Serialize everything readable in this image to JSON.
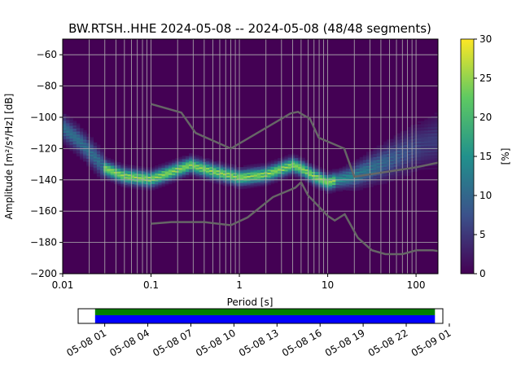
{
  "chart_data": {
    "type": "heatmap",
    "title": "BW.RTSH..HHE   2024-05-08 -- 2024-05-08  (48/48 segments)",
    "xlabel": "Period [s]",
    "ylabel": "Amplitude [m²/s⁴/Hz] [dB]",
    "xscale": "log",
    "xlim": [
      0.01,
      177
    ],
    "ylim": [
      -200,
      -50
    ],
    "xticks": [
      0.01,
      0.1,
      1,
      10,
      100
    ],
    "xtick_labels": [
      "0.01",
      "0.1",
      "1",
      "10",
      "100"
    ],
    "yticks": [
      -200,
      -180,
      -160,
      -140,
      -120,
      -100,
      -80,
      -60
    ],
    "ytick_labels": [
      "−200",
      "−180",
      "−160",
      "−140",
      "−120",
      "−100",
      "−80",
      "−60"
    ],
    "grid": true,
    "colorbar": {
      "label": "[%]",
      "range": [
        0,
        30
      ],
      "ticks": [
        0,
        5,
        10,
        15,
        20,
        25,
        30
      ],
      "tick_labels": [
        "0",
        "5",
        "10",
        "15",
        "20",
        "25",
        "30"
      ],
      "colormap": "viridis"
    },
    "mode_psd": {
      "period": [
        0.01,
        0.015,
        0.02,
        0.03,
        0.05,
        0.1,
        0.2,
        0.28,
        0.5,
        1,
        2,
        4,
        5,
        7,
        10,
        20,
        50,
        100,
        177
      ],
      "db": [
        -107,
        -115,
        -122,
        -133,
        -138,
        -140,
        -134,
        -131,
        -135,
        -139,
        -137,
        -131,
        -133,
        -138,
        -142,
        -138,
        -128,
        -120,
        -115
      ]
    },
    "nhnm": {
      "period": [
        0.1,
        0.22,
        0.32,
        0.8,
        3.8,
        4.6,
        6.3,
        7.9,
        15.4,
        20,
        100,
        177
      ],
      "db": [
        -91.5,
        -97,
        -110,
        -120,
        -97.5,
        -96.5,
        -101,
        -113,
        -120,
        -138,
        -132,
        -129
      ]
    },
    "nlnm": {
      "period": [
        0.1,
        0.17,
        0.4,
        0.8,
        1.24,
        2.4,
        4.3,
        5,
        6,
        10,
        12,
        15.6,
        21.9,
        31.6,
        45,
        70,
        101,
        154,
        177
      ],
      "db": [
        -168,
        -167,
        -167,
        -169,
        -164,
        -151,
        -145,
        -141.5,
        -150,
        -163,
        -166,
        -162,
        -177,
        -185,
        -187.5,
        -187.5,
        -185,
        -185,
        -185.5
      ]
    },
    "timeline": {
      "tick_labels": [
        "05-08 01",
        "05-08 04",
        "05-08 07",
        "05-08 10",
        "05-08 13",
        "05-08 16",
        "05-08 19",
        "05-08 22",
        "05-09 01"
      ],
      "coverage_start_hours": 0.33,
      "coverage_end_hours": 24.0,
      "axis_start_hours": -0.85,
      "axis_end_hours": 24.55,
      "colors": {
        "data": "#008000",
        "psd": "#0000ff"
      }
    }
  }
}
